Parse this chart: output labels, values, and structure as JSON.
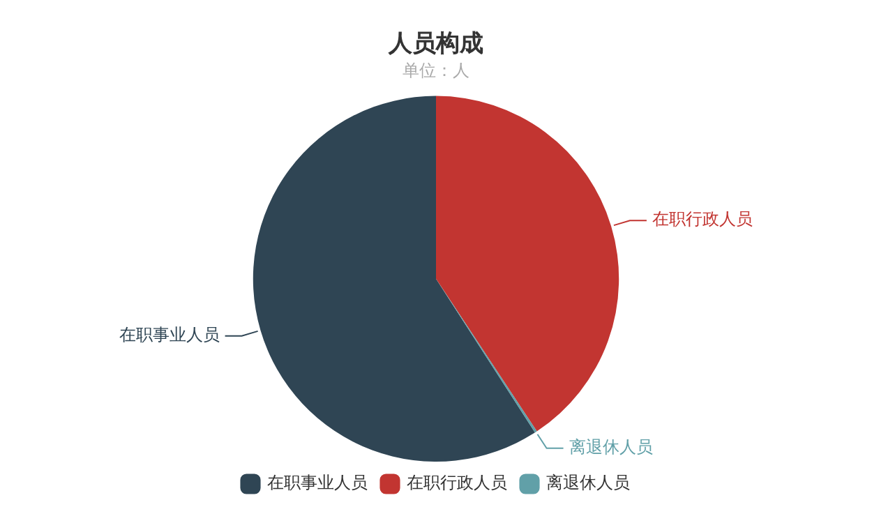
{
  "chart_data": {
    "type": "pie",
    "title": "人员构成",
    "subtitle": "单位：人",
    "categories": [
      "在职事业人员",
      "在职行政人员",
      "离退休人员"
    ],
    "values": [
      59.1,
      40.7,
      0.2
    ],
    "colors": [
      "#2f4554",
      "#c23531",
      "#61a0a8"
    ],
    "legend": "bottom"
  }
}
